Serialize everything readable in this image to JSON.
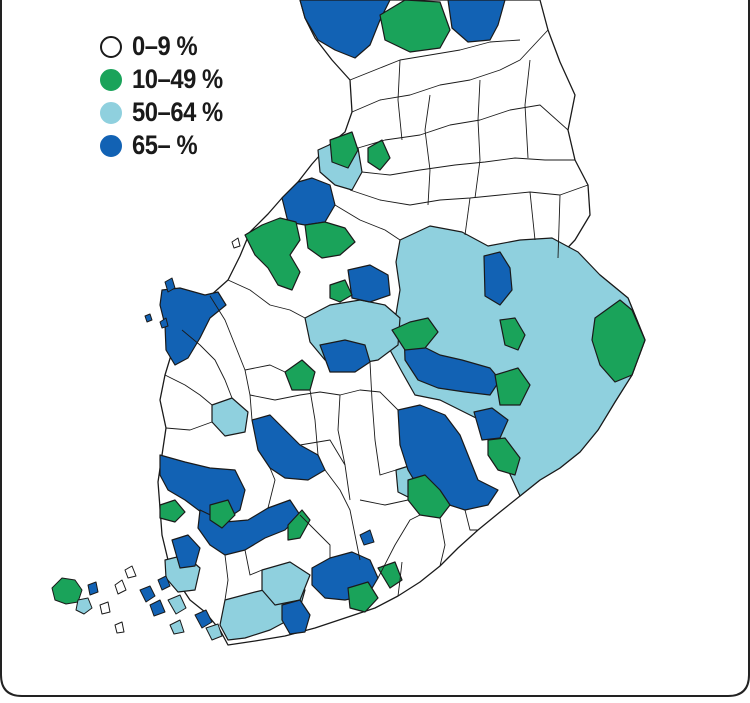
{
  "legend": {
    "items": [
      {
        "label": "0–9 %",
        "color": "#ffffff"
      },
      {
        "label": "10–49 %",
        "color": "#1aa35a"
      },
      {
        "label": "50–64 %",
        "color": "#8fd0de"
      },
      {
        "label": "65– %",
        "color": "#1262b4"
      }
    ]
  },
  "colors": {
    "outline": "#1a1a1a",
    "frame": "#222222",
    "background": "#ffffff"
  }
}
